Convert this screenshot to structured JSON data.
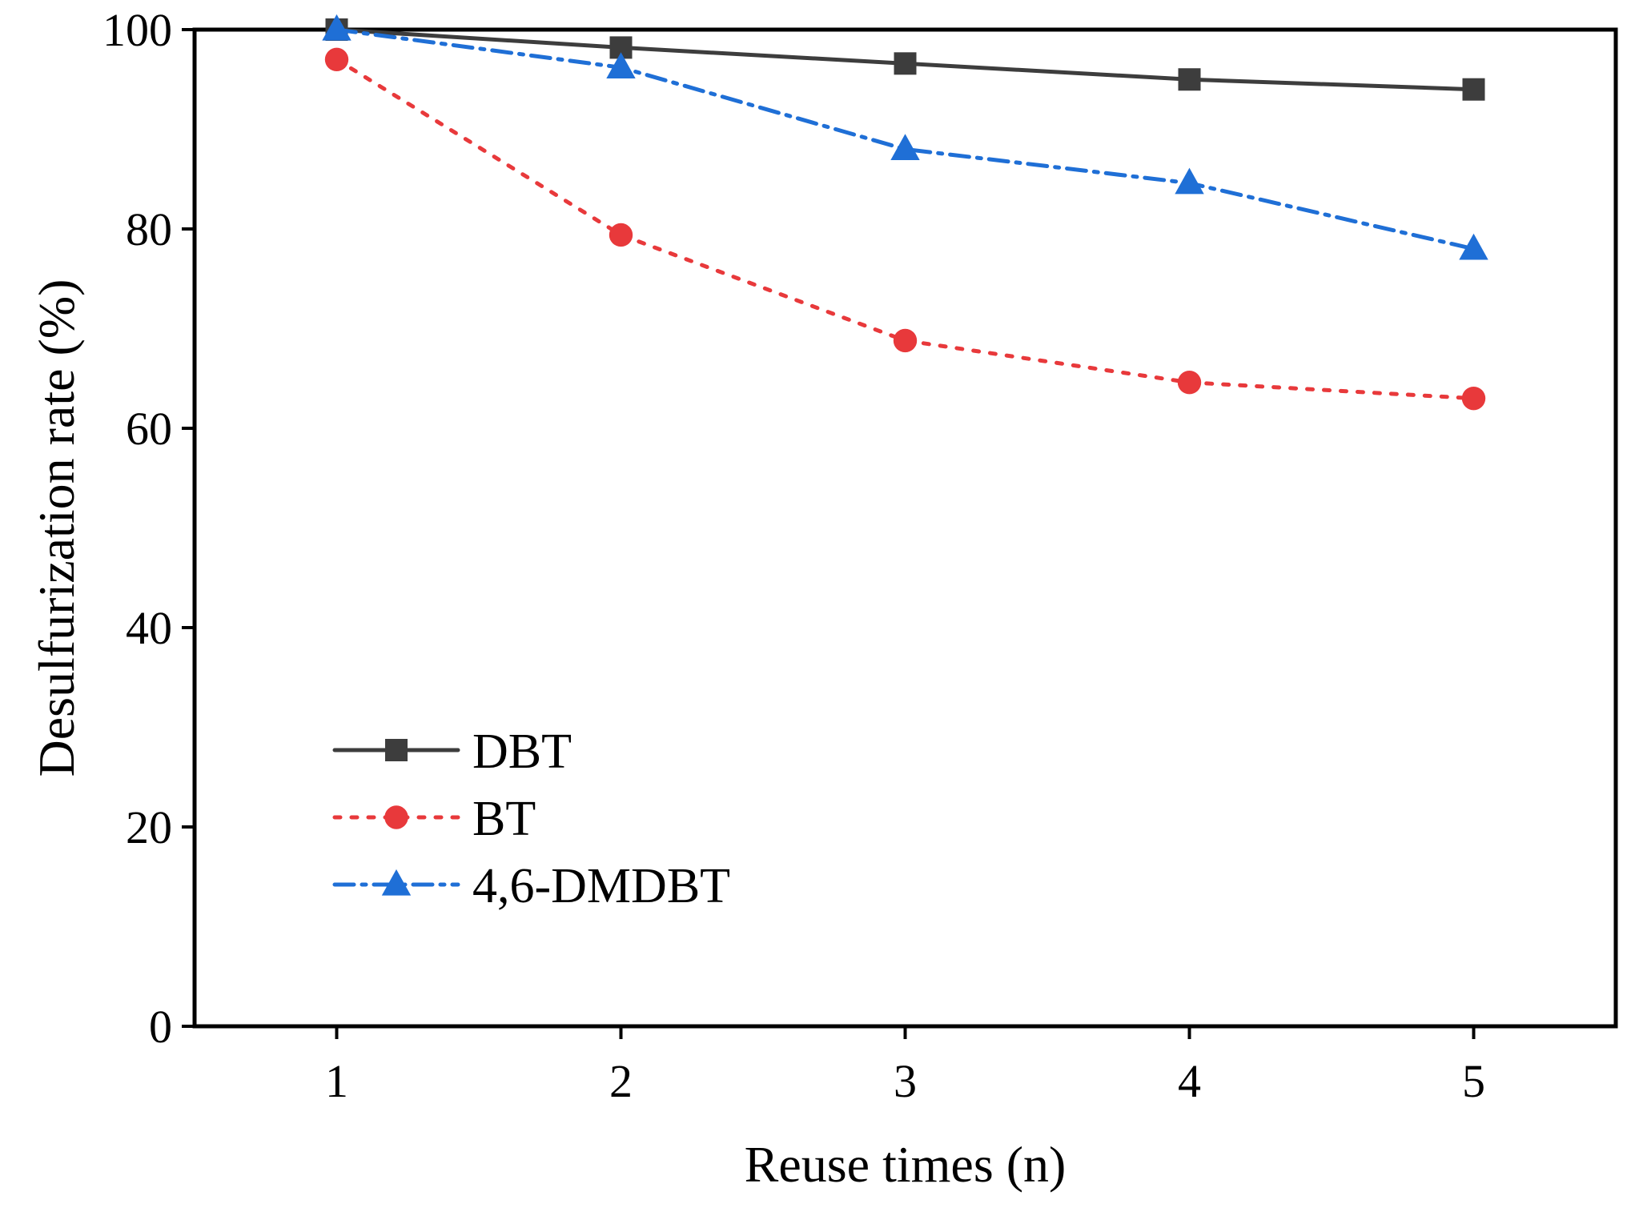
{
  "chart_data": {
    "type": "line",
    "title": "",
    "xlabel": "Reuse times (n)",
    "ylabel": "Desulfurization rate (%)",
    "x": [
      1,
      2,
      3,
      4,
      5
    ],
    "xlim": [
      0.5,
      5.5
    ],
    "ylim": [
      0,
      100
    ],
    "xticks": [
      1,
      2,
      3,
      4,
      5
    ],
    "yticks": [
      0,
      20,
      40,
      60,
      80,
      100
    ],
    "grid": false,
    "legend_position": "lower-left",
    "series": [
      {
        "name": "DBT",
        "values": [
          100,
          98.2,
          96.6,
          95.0,
          94.0
        ],
        "color": "#3d3d3d",
        "line_style": "solid",
        "marker": "square"
      },
      {
        "name": "BT",
        "values": [
          97.0,
          79.4,
          68.8,
          64.6,
          63.0
        ],
        "color": "#e8393b",
        "line_style": "dotted",
        "marker": "circle"
      },
      {
        "name": "4,6-DMDBT",
        "values": [
          100,
          96.2,
          88.0,
          84.6,
          78.0
        ],
        "color": "#1f6fd6",
        "line_style": "dash-dot",
        "marker": "triangle"
      }
    ]
  }
}
